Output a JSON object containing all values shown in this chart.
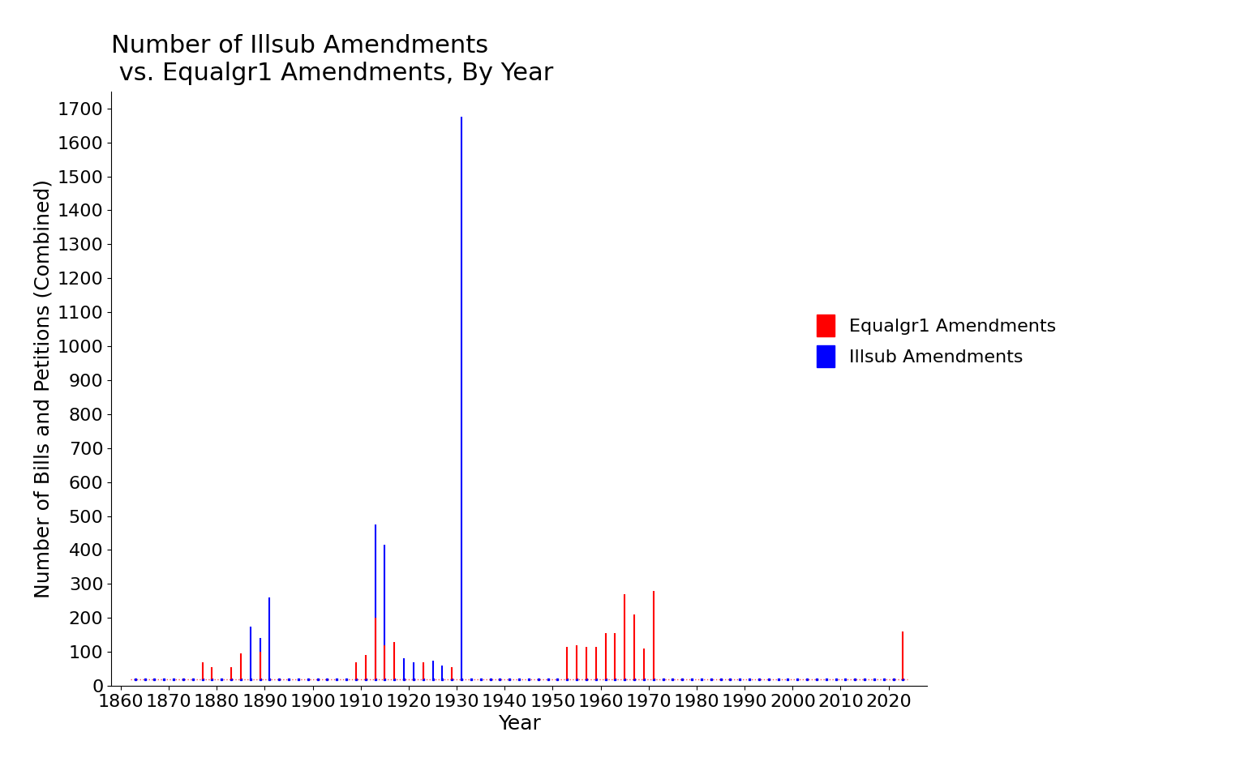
{
  "title": "Number of Illsub Amendments\n vs. Equalgr1 Amendments, By Year",
  "xlabel": "Year",
  "ylabel": "Number of Bills and Petitions (Combined)",
  "xlim": [
    1858,
    2028
  ],
  "ylim": [
    0,
    1750
  ],
  "yticks": [
    0,
    100,
    200,
    300,
    400,
    500,
    600,
    700,
    800,
    900,
    1000,
    1100,
    1200,
    1300,
    1400,
    1500,
    1600,
    1700
  ],
  "xticks": [
    1860,
    1870,
    1880,
    1890,
    1900,
    1910,
    1920,
    1930,
    1940,
    1950,
    1960,
    1970,
    1980,
    1990,
    2000,
    2010,
    2020
  ],
  "legend_labels": [
    "Equalgr1 Amendments",
    "Illsub Amendments"
  ],
  "bar_color_illsub": "#0000FF",
  "bar_color_equalgr1": "#FF0000",
  "bar_color_black": "#000000",
  "baseline": 20,
  "illsub_data": [
    [
      1863,
      20
    ],
    [
      1865,
      20
    ],
    [
      1867,
      20
    ],
    [
      1869,
      20
    ],
    [
      1871,
      20
    ],
    [
      1873,
      20
    ],
    [
      1875,
      20
    ],
    [
      1877,
      20
    ],
    [
      1879,
      20
    ],
    [
      1881,
      20
    ],
    [
      1883,
      20
    ],
    [
      1885,
      20
    ],
    [
      1887,
      175
    ],
    [
      1889,
      140
    ],
    [
      1891,
      260
    ],
    [
      1893,
      20
    ],
    [
      1895,
      20
    ],
    [
      1897,
      20
    ],
    [
      1899,
      20
    ],
    [
      1901,
      20
    ],
    [
      1903,
      20
    ],
    [
      1905,
      20
    ],
    [
      1907,
      20
    ],
    [
      1909,
      20
    ],
    [
      1911,
      20
    ],
    [
      1913,
      475
    ],
    [
      1915,
      415
    ],
    [
      1917,
      20
    ],
    [
      1919,
      80
    ],
    [
      1921,
      70
    ],
    [
      1923,
      60
    ],
    [
      1925,
      75
    ],
    [
      1927,
      60
    ],
    [
      1929,
      20
    ],
    [
      1931,
      1675
    ],
    [
      1933,
      20
    ],
    [
      1935,
      20
    ],
    [
      1937,
      20
    ],
    [
      1939,
      20
    ],
    [
      1941,
      20
    ],
    [
      1943,
      20
    ],
    [
      1945,
      20
    ],
    [
      1947,
      20
    ],
    [
      1949,
      20
    ],
    [
      1951,
      20
    ],
    [
      1953,
      20
    ],
    [
      1955,
      20
    ],
    [
      1957,
      20
    ],
    [
      1959,
      20
    ],
    [
      1961,
      20
    ],
    [
      1963,
      20
    ],
    [
      1965,
      20
    ],
    [
      1967,
      20
    ],
    [
      1969,
      20
    ],
    [
      1971,
      20
    ],
    [
      1973,
      20
    ],
    [
      1975,
      20
    ],
    [
      1977,
      20
    ],
    [
      1979,
      20
    ],
    [
      1981,
      20
    ],
    [
      1983,
      20
    ],
    [
      1985,
      20
    ],
    [
      1987,
      20
    ],
    [
      1989,
      20
    ],
    [
      1991,
      20
    ],
    [
      1993,
      20
    ],
    [
      1995,
      20
    ],
    [
      1997,
      20
    ],
    [
      1999,
      20
    ],
    [
      2001,
      20
    ],
    [
      2003,
      20
    ],
    [
      2005,
      20
    ],
    [
      2007,
      20
    ],
    [
      2009,
      20
    ],
    [
      2011,
      20
    ],
    [
      2013,
      20
    ],
    [
      2015,
      20
    ],
    [
      2017,
      20
    ],
    [
      2019,
      20
    ],
    [
      2021,
      20
    ],
    [
      2023,
      20
    ]
  ],
  "equalgr1_data": [
    [
      1863,
      20
    ],
    [
      1865,
      20
    ],
    [
      1867,
      20
    ],
    [
      1869,
      20
    ],
    [
      1871,
      20
    ],
    [
      1873,
      20
    ],
    [
      1875,
      20
    ],
    [
      1877,
      70
    ],
    [
      1879,
      55
    ],
    [
      1881,
      20
    ],
    [
      1883,
      55
    ],
    [
      1885,
      95
    ],
    [
      1887,
      20
    ],
    [
      1889,
      100
    ],
    [
      1891,
      20
    ],
    [
      1893,
      20
    ],
    [
      1895,
      20
    ],
    [
      1897,
      20
    ],
    [
      1899,
      20
    ],
    [
      1901,
      20
    ],
    [
      1903,
      20
    ],
    [
      1905,
      20
    ],
    [
      1907,
      20
    ],
    [
      1909,
      70
    ],
    [
      1911,
      90
    ],
    [
      1913,
      200
    ],
    [
      1915,
      120
    ],
    [
      1917,
      130
    ],
    [
      1919,
      20
    ],
    [
      1921,
      20
    ],
    [
      1923,
      70
    ],
    [
      1925,
      20
    ],
    [
      1927,
      20
    ],
    [
      1929,
      55
    ],
    [
      1931,
      20
    ],
    [
      1933,
      20
    ],
    [
      1935,
      20
    ],
    [
      1937,
      20
    ],
    [
      1939,
      20
    ],
    [
      1941,
      20
    ],
    [
      1943,
      20
    ],
    [
      1945,
      20
    ],
    [
      1947,
      20
    ],
    [
      1949,
      20
    ],
    [
      1951,
      20
    ],
    [
      1953,
      115
    ],
    [
      1955,
      120
    ],
    [
      1957,
      115
    ],
    [
      1959,
      115
    ],
    [
      1961,
      155
    ],
    [
      1963,
      155
    ],
    [
      1965,
      270
    ],
    [
      1967,
      210
    ],
    [
      1969,
      110
    ],
    [
      1971,
      280
    ],
    [
      1973,
      20
    ],
    [
      1975,
      20
    ],
    [
      1977,
      20
    ],
    [
      1979,
      20
    ],
    [
      1981,
      20
    ],
    [
      1983,
      20
    ],
    [
      1985,
      20
    ],
    [
      1987,
      20
    ],
    [
      1989,
      20
    ],
    [
      1991,
      20
    ],
    [
      1993,
      20
    ],
    [
      1995,
      20
    ],
    [
      1997,
      20
    ],
    [
      1999,
      20
    ],
    [
      2001,
      20
    ],
    [
      2003,
      20
    ],
    [
      2005,
      20
    ],
    [
      2007,
      20
    ],
    [
      2009,
      20
    ],
    [
      2011,
      20
    ],
    [
      2013,
      20
    ],
    [
      2015,
      20
    ],
    [
      2017,
      20
    ],
    [
      2019,
      20
    ],
    [
      2021,
      20
    ],
    [
      2023,
      160
    ]
  ],
  "black_data": [
    [
      1887,
      175
    ]
  ],
  "background_color": "#FFFFFF",
  "title_fontsize": 22,
  "axis_label_fontsize": 18,
  "tick_fontsize": 16,
  "legend_fontsize": 16
}
